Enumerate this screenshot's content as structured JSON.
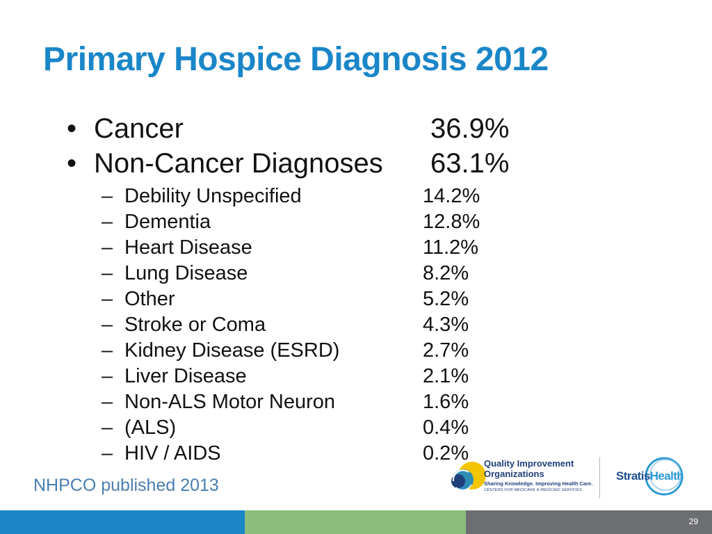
{
  "title": "Primary Hospice Diagnosis 2012",
  "main_items": [
    {
      "marker": "•",
      "label": "Cancer",
      "value": "36.9%"
    },
    {
      "marker": "•",
      "label": "Non-Cancer Diagnoses",
      "value": "63.1%"
    }
  ],
  "sub_items": [
    {
      "marker": "–",
      "label": "Debility Unspecified",
      "value": "14.2%"
    },
    {
      "marker": "–",
      "label": "Dementia",
      "value": "12.8%"
    },
    {
      "marker": "–",
      "label": "Heart Disease",
      "value": "11.2%"
    },
    {
      "marker": "–",
      "label": "Lung Disease",
      "value": "8.2%"
    },
    {
      "marker": "–",
      "label": "Other",
      "value": "5.2%"
    },
    {
      "marker": "–",
      "label": "Stroke or Coma",
      "value": "4.3%"
    },
    {
      "marker": "–",
      "label": "Kidney Disease (ESRD)",
      "value": "2.7%"
    },
    {
      "marker": "–",
      "label": "Liver Disease",
      "value": "2.1%"
    },
    {
      "marker": "–",
      "label": "Non-ALS Motor Neuron",
      "value": "1.6%"
    },
    {
      "marker": "–",
      "label": "(ALS)",
      "value": "0.4%"
    },
    {
      "marker": "–",
      "label": "HIV / AIDS",
      "value": "0.2%"
    }
  ],
  "source": "NHPCO published 2013",
  "qio_logo": {
    "line1": "Quality Improvement",
    "line2": "Organizations",
    "tagline": "Sharing Knowledge. Improving Health Care.",
    "subline": "CENTERS FOR MEDICARE & MEDICAID SERVICES"
  },
  "stratis_logo": {
    "part1": "Stratis",
    "part2": "Health"
  },
  "page_number": "29",
  "colors": {
    "title": "#1a86c8",
    "source": "#4a7fb0",
    "band_blue": "#1a86c8",
    "band_green": "#8cbd7a",
    "band_gray": "#6d6e71"
  }
}
